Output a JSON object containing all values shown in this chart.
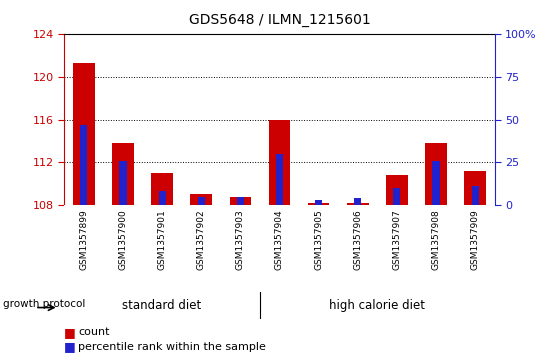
{
  "title": "GDS5648 / ILMN_1215601",
  "samples": [
    "GSM1357899",
    "GSM1357900",
    "GSM1357901",
    "GSM1357902",
    "GSM1357903",
    "GSM1357904",
    "GSM1357905",
    "GSM1357906",
    "GSM1357907",
    "GSM1357908",
    "GSM1357909"
  ],
  "count_values": [
    121.3,
    113.8,
    111.0,
    109.0,
    108.8,
    116.0,
    108.2,
    108.2,
    110.8,
    113.8,
    111.2
  ],
  "percentile_values": [
    47,
    26,
    8,
    5,
    5,
    30,
    3,
    4,
    10,
    26,
    11
  ],
  "ylim_left": [
    108,
    124
  ],
  "ylim_right": [
    0,
    100
  ],
  "yticks_left": [
    108,
    112,
    116,
    120,
    124
  ],
  "yticks_right": [
    0,
    25,
    50,
    75,
    100
  ],
  "yticklabels_right": [
    "0",
    "25",
    "50",
    "75",
    "100%"
  ],
  "base_value": 108,
  "bar_color_red": "#cc0000",
  "bar_color_blue": "#2222cc",
  "group1_label": "standard diet",
  "group2_label": "high calorie diet",
  "group1_indices": [
    0,
    1,
    2,
    3,
    4
  ],
  "group2_indices": [
    5,
    6,
    7,
    8,
    9,
    10
  ],
  "group_label_prefix": "growth protocol",
  "legend_count_label": "count",
  "legend_percentile_label": "percentile rank within the sample",
  "group_bg_color": "#66dd66",
  "tick_label_bg": "#cccccc",
  "bar_width": 0.55,
  "blue_bar_width": 0.18,
  "plot_bg": "#ffffff",
  "fig_bg": "#ffffff"
}
